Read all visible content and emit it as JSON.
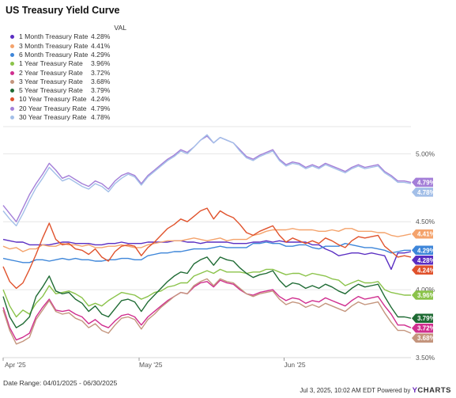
{
  "title": "US Treasury Yield Curve",
  "legend_header": "VAL",
  "date_range": "Date Range: 04/01/2025 - 06/30/2025",
  "footer": {
    "timestamp": "Jul 3, 2025, 10:02 AM EDT Powered by",
    "brand_prefix": "Y",
    "brand_rest": "CHARTS"
  },
  "chart_data": {
    "type": "line",
    "x_ticks": [
      "Apr '25",
      "May '25",
      "Jun '25"
    ],
    "y_ticks": [
      "3.50%",
      "4.00%",
      "4.50%",
      "5.00%"
    ],
    "ylim": [
      3.5,
      5.2
    ],
    "xlim": [
      "2025-04-01",
      "2025-06-30"
    ],
    "grid": "horizontal",
    "legend_placement": "top-left",
    "series": [
      {
        "name": "1 Month Treasury Rate",
        "label": "4.28%",
        "color": "#5a2ec2",
        "values": [
          4.37,
          4.36,
          4.35,
          4.35,
          4.33,
          4.33,
          4.33,
          4.33,
          4.34,
          4.35,
          4.35,
          4.34,
          4.34,
          4.34,
          4.33,
          4.33,
          4.34,
          4.34,
          4.35,
          4.34,
          4.34,
          4.34,
          4.35,
          4.35,
          4.35,
          4.35,
          4.36,
          4.36,
          4.35,
          4.35,
          4.34,
          4.35,
          4.35,
          4.35,
          4.35,
          4.34,
          4.34,
          4.34,
          4.35,
          4.35,
          4.36,
          4.35,
          4.36,
          4.35,
          4.35,
          4.35,
          4.35,
          4.33,
          4.33,
          4.3,
          4.28,
          4.25,
          4.26,
          4.27,
          4.27,
          4.26,
          4.27,
          4.26,
          4.25,
          4.15,
          4.27,
          4.27,
          4.28
        ]
      },
      {
        "name": "3 Month Treasury Rate",
        "label": "4.41%",
        "color": "#f4a36c",
        "values": [
          4.32,
          4.3,
          4.31,
          4.28,
          4.3,
          4.3,
          4.33,
          4.32,
          4.32,
          4.34,
          4.33,
          4.33,
          4.32,
          4.33,
          4.31,
          4.31,
          4.32,
          4.32,
          4.33,
          4.32,
          4.31,
          4.31,
          4.33,
          4.34,
          4.35,
          4.36,
          4.36,
          4.36,
          4.37,
          4.38,
          4.37,
          4.36,
          4.37,
          4.38,
          4.36,
          4.37,
          4.37,
          4.37,
          4.4,
          4.41,
          4.43,
          4.44,
          4.44,
          4.44,
          4.45,
          4.44,
          4.44,
          4.44,
          4.43,
          4.43,
          4.44,
          4.43,
          4.45,
          4.45,
          4.43,
          4.43,
          4.43,
          4.42,
          4.42,
          4.4,
          4.39,
          4.4,
          4.41
        ]
      },
      {
        "name": "6 Month Treasury Rate",
        "label": "4.29%",
        "color": "#3e86d9",
        "values": [
          4.23,
          4.22,
          4.21,
          4.2,
          4.2,
          4.22,
          4.22,
          4.21,
          4.22,
          4.23,
          4.22,
          4.23,
          4.22,
          4.22,
          4.21,
          4.21,
          4.22,
          4.22,
          4.23,
          4.23,
          4.22,
          4.22,
          4.25,
          4.26,
          4.27,
          4.27,
          4.28,
          4.28,
          4.29,
          4.3,
          4.3,
          4.3,
          4.31,
          4.32,
          4.31,
          4.31,
          4.31,
          4.31,
          4.34,
          4.34,
          4.35,
          4.34,
          4.34,
          4.32,
          4.32,
          4.33,
          4.33,
          4.31,
          4.3,
          4.32,
          4.32,
          4.32,
          4.34,
          4.33,
          4.32,
          4.31,
          4.31,
          4.3,
          4.29,
          4.27,
          4.28,
          4.29,
          4.29
        ]
      },
      {
        "name": "1 Year Treasury Rate",
        "label": "3.96%",
        "color": "#8bc34a",
        "values": [
          4.0,
          3.88,
          3.8,
          3.85,
          3.82,
          3.9,
          3.95,
          4.03,
          3.97,
          3.98,
          3.99,
          3.97,
          3.94,
          3.88,
          3.9,
          3.88,
          3.92,
          3.95,
          3.98,
          3.97,
          3.96,
          3.93,
          3.95,
          3.98,
          3.99,
          4.02,
          4.03,
          4.05,
          4.05,
          4.1,
          4.12,
          4.14,
          4.12,
          4.15,
          4.13,
          4.13,
          4.13,
          4.12,
          4.13,
          4.13,
          4.15,
          4.15,
          4.13,
          4.11,
          4.12,
          4.12,
          4.1,
          4.12,
          4.11,
          4.1,
          4.08,
          4.07,
          4.03,
          4.05,
          4.07,
          4.05,
          4.05,
          4.06,
          4.0,
          3.98,
          3.97,
          3.96,
          3.96
        ]
      },
      {
        "name": "2 Year Treasury Rate",
        "label": "3.72%",
        "color": "#d02f8f",
        "values": [
          3.87,
          3.72,
          3.63,
          3.65,
          3.68,
          3.8,
          3.87,
          3.93,
          3.85,
          3.84,
          3.85,
          3.82,
          3.8,
          3.75,
          3.78,
          3.74,
          3.72,
          3.77,
          3.81,
          3.82,
          3.8,
          3.74,
          3.8,
          3.84,
          3.88,
          3.92,
          3.95,
          3.98,
          3.97,
          4.02,
          4.05,
          4.06,
          4.02,
          4.07,
          4.05,
          4.04,
          4.0,
          3.97,
          3.96,
          3.98,
          3.99,
          4.0,
          3.95,
          3.92,
          3.94,
          3.93,
          3.9,
          3.92,
          3.91,
          3.94,
          3.92,
          3.9,
          3.88,
          3.92,
          3.95,
          3.93,
          3.94,
          3.95,
          3.88,
          3.82,
          3.74,
          3.74,
          3.72
        ]
      },
      {
        "name": "3 Year Treasury Rate",
        "label": "3.68%",
        "color": "#c4957d",
        "values": [
          3.85,
          3.7,
          3.6,
          3.62,
          3.65,
          3.78,
          3.85,
          3.92,
          3.84,
          3.82,
          3.83,
          3.79,
          3.77,
          3.72,
          3.75,
          3.7,
          3.68,
          3.74,
          3.79,
          3.8,
          3.78,
          3.71,
          3.78,
          3.82,
          3.87,
          3.91,
          3.95,
          3.98,
          3.97,
          4.03,
          4.06,
          4.08,
          4.03,
          4.08,
          4.06,
          4.05,
          4.01,
          3.97,
          3.95,
          3.97,
          3.98,
          3.99,
          3.93,
          3.89,
          3.91,
          3.9,
          3.87,
          3.89,
          3.87,
          3.9,
          3.88,
          3.86,
          3.84,
          3.88,
          3.91,
          3.89,
          3.9,
          3.91,
          3.83,
          3.76,
          3.7,
          3.7,
          3.68
        ]
      },
      {
        "name": "5 Year Treasury Rate",
        "label": "3.79%",
        "color": "#1f6b34",
        "values": [
          3.95,
          3.8,
          3.72,
          3.75,
          3.8,
          3.95,
          4.02,
          4.1,
          3.99,
          3.97,
          3.98,
          3.93,
          3.9,
          3.84,
          3.88,
          3.82,
          3.8,
          3.86,
          3.92,
          3.93,
          3.91,
          3.84,
          3.91,
          3.96,
          4.01,
          4.06,
          4.1,
          4.13,
          4.12,
          4.19,
          4.22,
          4.24,
          4.18,
          4.24,
          4.22,
          4.21,
          4.16,
          4.12,
          4.09,
          4.11,
          4.12,
          4.14,
          4.07,
          4.02,
          4.05,
          4.04,
          4.01,
          4.03,
          4.01,
          4.04,
          4.02,
          3.99,
          3.97,
          4.01,
          4.04,
          4.02,
          4.03,
          4.04,
          3.95,
          3.87,
          3.8,
          3.8,
          3.79
        ]
      },
      {
        "name": "10 Year Treasury Rate",
        "label": "4.24%",
        "color": "#e0522c",
        "values": [
          4.17,
          4.06,
          4.01,
          4.05,
          4.15,
          4.26,
          4.38,
          4.49,
          4.37,
          4.33,
          4.34,
          4.3,
          4.29,
          4.26,
          4.3,
          4.24,
          4.21,
          4.28,
          4.32,
          4.33,
          4.32,
          4.25,
          4.31,
          4.35,
          4.4,
          4.45,
          4.48,
          4.52,
          4.5,
          4.54,
          4.58,
          4.6,
          4.52,
          4.58,
          4.55,
          4.53,
          4.48,
          4.42,
          4.4,
          4.43,
          4.45,
          4.47,
          4.4,
          4.35,
          4.38,
          4.36,
          4.34,
          4.36,
          4.34,
          4.38,
          4.36,
          4.33,
          4.31,
          4.36,
          4.39,
          4.38,
          4.39,
          4.4,
          4.32,
          4.28,
          4.24,
          4.25,
          4.24
        ]
      },
      {
        "name": "20 Year Treasury Rate",
        "label": "4.79%",
        "color": "#a47fd8",
        "values": [
          4.62,
          4.56,
          4.5,
          4.6,
          4.7,
          4.78,
          4.85,
          4.93,
          4.88,
          4.82,
          4.84,
          4.81,
          4.78,
          4.76,
          4.8,
          4.78,
          4.74,
          4.8,
          4.84,
          4.86,
          4.84,
          4.78,
          4.84,
          4.88,
          4.92,
          4.96,
          4.99,
          5.03,
          5.01,
          5.05,
          5.1,
          5.13,
          5.08,
          5.12,
          5.1,
          5.08,
          5.03,
          4.98,
          4.96,
          4.99,
          5.01,
          5.03,
          4.96,
          4.92,
          4.94,
          4.93,
          4.9,
          4.92,
          4.9,
          4.93,
          4.91,
          4.89,
          4.87,
          4.9,
          4.92,
          4.9,
          4.91,
          4.92,
          4.87,
          4.84,
          4.8,
          4.8,
          4.79
        ]
      },
      {
        "name": "30 Year Treasury Rate",
        "label": "4.78%",
        "color": "#a3bfe8",
        "values": [
          4.58,
          4.52,
          4.47,
          4.56,
          4.66,
          4.75,
          4.82,
          4.9,
          4.85,
          4.8,
          4.82,
          4.79,
          4.76,
          4.74,
          4.78,
          4.76,
          4.72,
          4.78,
          4.82,
          4.85,
          4.83,
          4.77,
          4.83,
          4.87,
          4.91,
          4.95,
          4.98,
          5.02,
          5.0,
          5.05,
          5.1,
          5.14,
          5.08,
          5.12,
          5.1,
          5.08,
          5.02,
          4.97,
          4.95,
          4.98,
          5.0,
          5.02,
          4.95,
          4.91,
          4.93,
          4.92,
          4.89,
          4.91,
          4.89,
          4.92,
          4.9,
          4.88,
          4.86,
          4.89,
          4.91,
          4.89,
          4.9,
          4.91,
          4.86,
          4.83,
          4.79,
          4.79,
          4.78
        ]
      }
    ]
  }
}
